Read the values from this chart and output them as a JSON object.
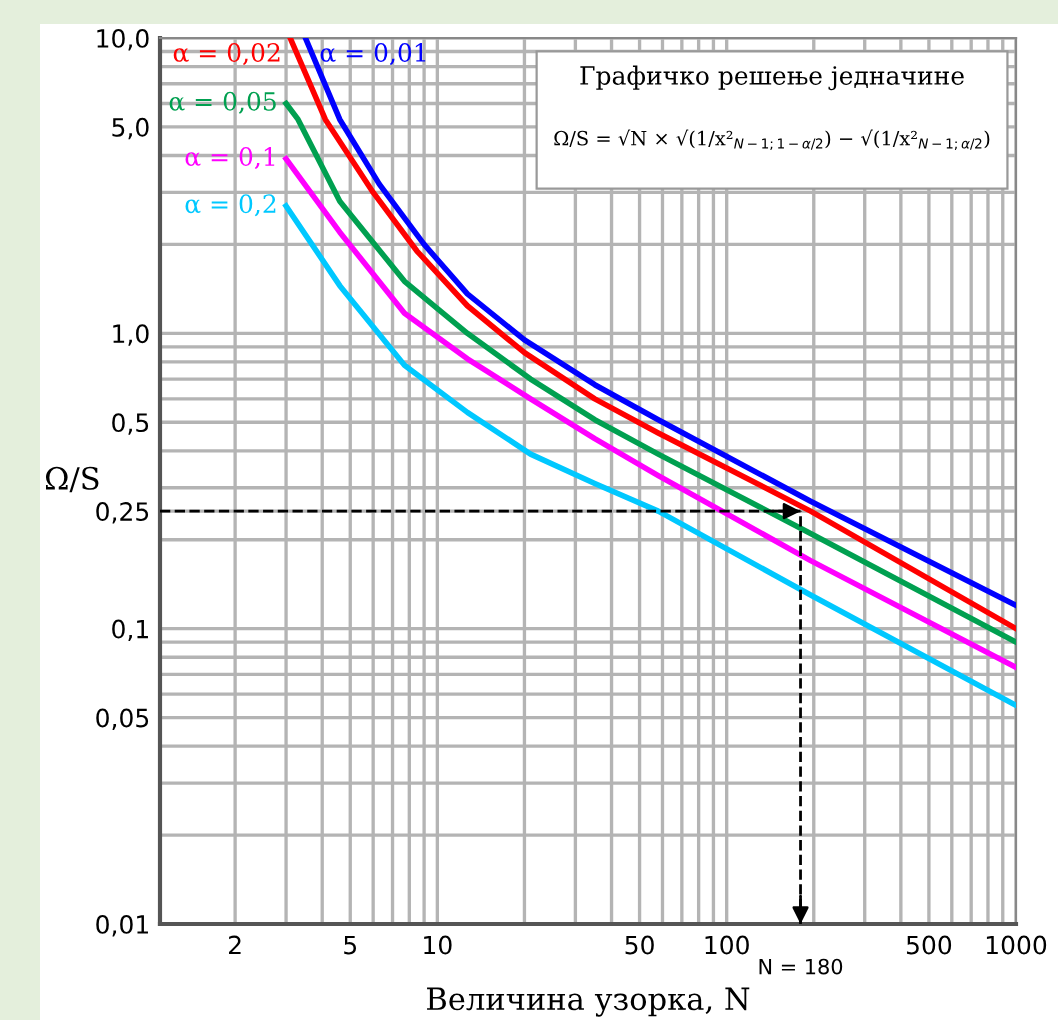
{
  "chart_data": {
    "type": "line",
    "xlabel": "Величина узорка, N",
    "ylabel": "Ω/S",
    "log": "xy",
    "xlim": [
      1.1,
      1000
    ],
    "ylim": [
      0.01,
      10
    ],
    "xticks": [
      2,
      5,
      10,
      50,
      100,
      500,
      1000
    ],
    "yticks": [
      {
        "value": 0.01,
        "label": "0,01"
      },
      {
        "value": 0.05,
        "label": "0,05"
      },
      {
        "value": 0.1,
        "label": "0,1"
      },
      {
        "value": 0.25,
        "label": "0,25"
      },
      {
        "value": 0.5,
        "label": "0,5"
      },
      {
        "value": 1,
        "label": "1,0"
      },
      {
        "value": 5,
        "label": "5,0"
      },
      {
        "value": 10,
        "label": "10,0"
      }
    ],
    "grid": true,
    "legend": false,
    "marker": "none",
    "line_style": "solid",
    "series": [
      {
        "name": "α = 0,01",
        "color": "#0000ff",
        "x": [
          3.5,
          4.6,
          6.3,
          9.0,
          12.7,
          20,
          35,
          58,
          195,
          1000
        ],
        "values": [
          10,
          5.3,
          3.2,
          2.0,
          1.36,
          0.95,
          0.67,
          0.51,
          0.27,
          0.12
        ]
      },
      {
        "name": "α = 0,02",
        "color": "#ff0000",
        "x": [
          3.1,
          4.1,
          6.0,
          8.5,
          12.7,
          20,
          35,
          58,
          195,
          1000
        ],
        "values": [
          10,
          5.3,
          3.0,
          1.9,
          1.24,
          0.86,
          0.6,
          0.46,
          0.25,
          0.1
        ]
      },
      {
        "name": "α = 0,05",
        "color": "#00a050",
        "x": [
          3.0,
          3.3,
          4.6,
          7.7,
          12.7,
          21,
          35,
          58,
          195,
          1000
        ],
        "values": [
          6.0,
          5.3,
          2.8,
          1.5,
          1.0,
          0.7,
          0.51,
          0.39,
          0.21,
          0.09
        ]
      },
      {
        "name": "α = 0,1",
        "color": "#ff00ff",
        "x": [
          3.0,
          4.6,
          7.7,
          12.7,
          21,
          35,
          58,
          195,
          1000
        ],
        "values": [
          3.9,
          2.2,
          1.17,
          0.82,
          0.6,
          0.44,
          0.33,
          0.17,
          0.074
        ]
      },
      {
        "name": "α = 0,2",
        "color": "#00c8ff",
        "x": [
          3.0,
          4.6,
          7.7,
          12.7,
          21,
          35,
          58,
          195,
          1000
        ],
        "values": [
          2.7,
          1.45,
          0.78,
          0.54,
          0.39,
          0.31,
          0.25,
          0.13,
          0.055
        ]
      }
    ],
    "ref_lines": [
      {
        "axis": "y",
        "value": 0.25,
        "label": null,
        "color": "#000000",
        "line_style": "dashed"
      },
      {
        "axis": "x",
        "value": 180,
        "label": "N = 180",
        "color": "#000000",
        "line_style": "dashed"
      }
    ],
    "annotations": [
      "Графичко решење једначине",
      "Ω/S = √N × √(1/x²$_{N−1;1−α/2}$) − √(1/x²$_{N−1;α/2}$)"
    ]
  }
}
